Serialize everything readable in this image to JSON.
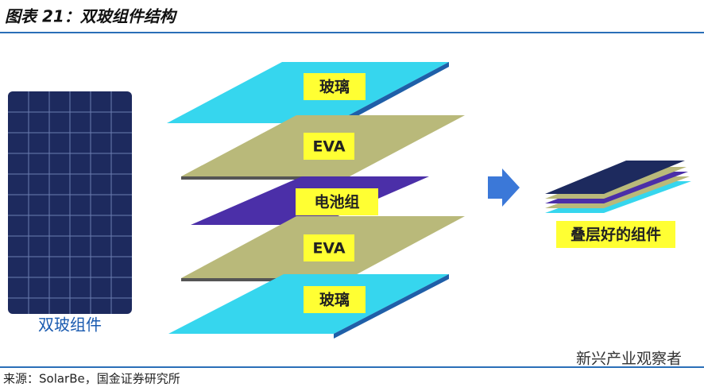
{
  "header": {
    "title": "图表 21：双玻组件结构"
  },
  "panel": {
    "label": "双玻组件"
  },
  "layers": [
    {
      "label": "玻璃"
    },
    {
      "label": "EVA"
    },
    {
      "label": "电池组"
    },
    {
      "label": "EVA"
    },
    {
      "label": "玻璃"
    }
  ],
  "result": {
    "label": "叠层好的组件"
  },
  "footer": {
    "source": "来源：SolarBe，国金证券研究所",
    "watermark": "新兴产业观察者"
  }
}
